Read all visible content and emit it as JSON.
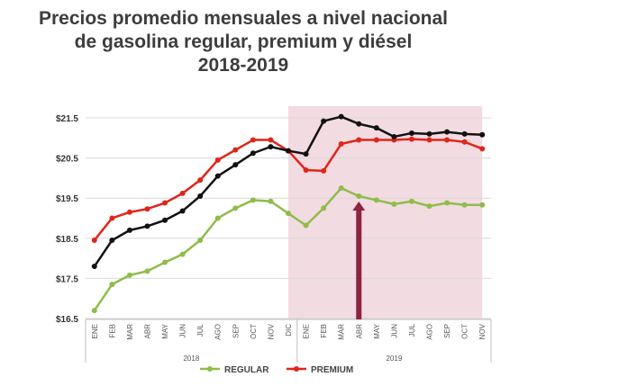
{
  "header": {
    "title_line1": "Precios promedio mensuales a nivel nacional",
    "title_line2": "de gasolina regular, premium y diésel",
    "title_line3": "2018-2019"
  },
  "chart_data": {
    "type": "line",
    "title": "Precios promedio mensuales a nivel nacional de gasolina regular, premium y diésel 2018-2019",
    "categories": [
      "ENE",
      "FEB",
      "MAR",
      "ABR",
      "MAY",
      "JUN",
      "JUL",
      "AGO",
      "SEP",
      "OCT",
      "NOV",
      "DIC",
      "ENE",
      "FEB",
      "MAR",
      "ABR",
      "MAY",
      "JUN",
      "JUL",
      "AGO",
      "SEP",
      "OCT",
      "NOV"
    ],
    "year_groups": [
      {
        "label": "2018",
        "start": 0,
        "end": 11
      },
      {
        "label": "2019",
        "start": 12,
        "end": 22
      }
    ],
    "y_ticks": [
      "$16.5",
      "$17.5",
      "$18.5",
      "$19.5",
      "$20.5",
      "$21.5"
    ],
    "ylim": [
      16.5,
      21.5
    ],
    "highlight_range": [
      11.5,
      22.5
    ],
    "series": [
      {
        "name": "REGULAR",
        "color": "#8fbc4a",
        "values": [
          16.7,
          17.35,
          17.58,
          17.68,
          17.9,
          18.1,
          18.45,
          19.0,
          19.25,
          19.45,
          19.42,
          19.12,
          18.82,
          19.25,
          19.75,
          19.55,
          19.45,
          19.35,
          19.42,
          19.3,
          19.38,
          19.33,
          19.33
        ],
        "in_legend": true
      },
      {
        "name": "PREMIUM",
        "color": "#e0251b",
        "values": [
          18.45,
          19.0,
          19.15,
          19.23,
          19.38,
          19.62,
          19.95,
          20.45,
          20.7,
          20.95,
          20.95,
          20.68,
          20.2,
          20.18,
          20.85,
          20.95,
          20.95,
          20.95,
          20.97,
          20.95,
          20.95,
          20.9,
          20.73
        ],
        "in_legend": true
      },
      {
        "name": "DIESEL",
        "color": "#111111",
        "values": [
          17.8,
          18.45,
          18.7,
          18.8,
          18.95,
          19.18,
          19.55,
          20.05,
          20.33,
          20.62,
          20.78,
          20.68,
          20.6,
          21.42,
          21.53,
          21.35,
          21.25,
          21.03,
          21.12,
          21.1,
          21.15,
          21.1,
          21.08
        ],
        "in_legend": false
      }
    ],
    "annotation": {
      "type": "arrow",
      "category_index": 15,
      "color": "#8b2540"
    },
    "legend": {
      "position": "bottom",
      "items": [
        "REGULAR",
        "PREMIUM"
      ]
    }
  }
}
